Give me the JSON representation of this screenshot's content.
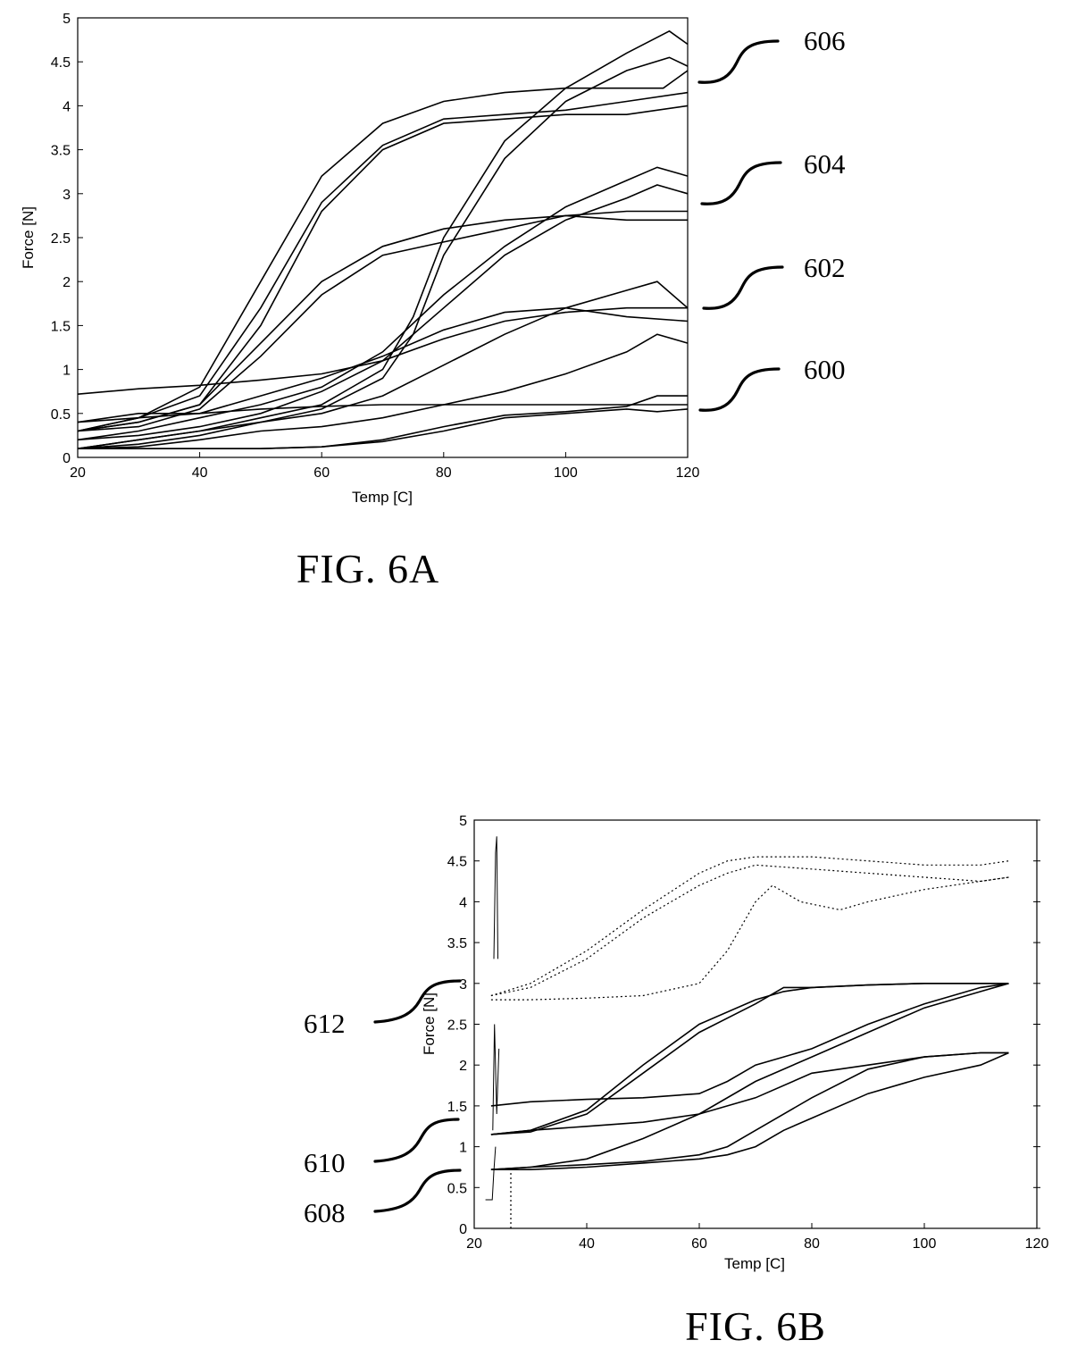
{
  "chart_data": [
    {
      "type": "line",
      "figure_label": "FIG. 6A",
      "xlabel": "Temp [C]",
      "ylabel": "Force [N]",
      "xlim": [
        20,
        120
      ],
      "ylim": [
        0,
        5
      ],
      "xticks": [
        20,
        40,
        60,
        80,
        100,
        120
      ],
      "yticks": [
        0,
        0.5,
        1,
        1.5,
        2,
        2.5,
        3,
        3.5,
        4,
        4.5,
        5
      ],
      "grid": false,
      "reference_labels": [
        {
          "text": "606",
          "y": 4.3
        },
        {
          "text": "604",
          "y": 2.9
        },
        {
          "text": "602",
          "y": 1.7
        },
        {
          "text": "600",
          "y": 0.55
        }
      ],
      "series": [
        {
          "group": "606",
          "x": [
            20,
            30,
            40,
            50,
            60,
            70,
            80,
            90,
            100,
            110,
            116,
            118,
            120
          ],
          "y": [
            0.4,
            0.45,
            0.8,
            2.0,
            3.2,
            3.8,
            4.05,
            4.15,
            4.2,
            4.2,
            4.2,
            4.3,
            4.4
          ]
        },
        {
          "group": "606",
          "x": [
            20,
            30,
            40,
            50,
            60,
            70,
            80,
            90,
            100,
            110,
            120
          ],
          "y": [
            0.3,
            0.45,
            0.7,
            1.7,
            2.9,
            3.55,
            3.85,
            3.9,
            3.95,
            4.05,
            4.15
          ]
        },
        {
          "group": "606",
          "x": [
            20,
            30,
            40,
            50,
            60,
            70,
            80,
            90,
            100,
            110,
            120
          ],
          "y": [
            0.3,
            0.4,
            0.6,
            1.5,
            2.8,
            3.5,
            3.8,
            3.85,
            3.9,
            3.9,
            4.0
          ]
        },
        {
          "group": "606",
          "x": [
            20,
            30,
            40,
            50,
            60,
            70,
            75,
            80,
            90,
            100,
            110,
            117,
            120
          ],
          "y": [
            0.1,
            0.2,
            0.3,
            0.45,
            0.6,
            1.0,
            1.6,
            2.5,
            3.6,
            4.2,
            4.6,
            4.85,
            4.7
          ]
        },
        {
          "group": "606",
          "x": [
            20,
            30,
            40,
            50,
            60,
            70,
            75,
            80,
            90,
            100,
            110,
            117,
            120
          ],
          "y": [
            0.1,
            0.15,
            0.25,
            0.4,
            0.55,
            0.9,
            1.4,
            2.3,
            3.4,
            4.05,
            4.4,
            4.55,
            4.45
          ]
        },
        {
          "group": "604",
          "x": [
            20,
            30,
            40,
            50,
            60,
            70,
            80,
            90,
            100,
            110,
            120
          ],
          "y": [
            0.3,
            0.4,
            0.6,
            1.3,
            2.0,
            2.4,
            2.6,
            2.7,
            2.75,
            2.8,
            2.8
          ]
        },
        {
          "group": "604",
          "x": [
            20,
            30,
            40,
            50,
            60,
            70,
            80,
            90,
            100,
            110,
            120
          ],
          "y": [
            0.3,
            0.35,
            0.55,
            1.15,
            1.85,
            2.3,
            2.45,
            2.6,
            2.75,
            2.7,
            2.7
          ]
        },
        {
          "group": "604",
          "x": [
            20,
            30,
            40,
            50,
            60,
            70,
            80,
            90,
            100,
            110,
            115,
            120
          ],
          "y": [
            0.2,
            0.3,
            0.45,
            0.6,
            0.8,
            1.2,
            1.85,
            2.4,
            2.85,
            3.15,
            3.3,
            3.2
          ]
        },
        {
          "group": "604",
          "x": [
            20,
            30,
            40,
            50,
            60,
            70,
            80,
            90,
            100,
            110,
            115,
            120
          ],
          "y": [
            0.2,
            0.25,
            0.35,
            0.5,
            0.75,
            1.1,
            1.7,
            2.3,
            2.7,
            2.95,
            3.1,
            3.0
          ]
        },
        {
          "group": "602",
          "x": [
            20,
            30,
            40,
            50,
            60,
            70,
            80,
            90,
            100,
            110,
            120
          ],
          "y": [
            0.72,
            0.78,
            0.82,
            0.88,
            0.95,
            1.1,
            1.35,
            1.55,
            1.65,
            1.7,
            1.7
          ]
        },
        {
          "group": "602",
          "x": [
            20,
            30,
            40,
            50,
            60,
            70,
            80,
            90,
            100,
            110,
            120
          ],
          "y": [
            0.3,
            0.45,
            0.5,
            0.7,
            0.9,
            1.15,
            1.45,
            1.65,
            1.7,
            1.6,
            1.55
          ]
        },
        {
          "group": "602",
          "x": [
            20,
            30,
            40,
            50,
            60,
            70,
            80,
            90,
            100,
            110,
            115,
            120
          ],
          "y": [
            0.1,
            0.2,
            0.3,
            0.4,
            0.5,
            0.7,
            1.05,
            1.4,
            1.7,
            1.9,
            2.0,
            1.7
          ]
        },
        {
          "group": "602",
          "x": [
            20,
            30,
            40,
            50,
            60,
            70,
            80,
            90,
            100,
            110,
            115,
            120
          ],
          "y": [
            0.1,
            0.12,
            0.2,
            0.3,
            0.35,
            0.45,
            0.6,
            0.75,
            0.95,
            1.2,
            1.4,
            1.3
          ]
        },
        {
          "group": "600",
          "x": [
            20,
            30,
            40,
            50,
            60,
            70,
            80,
            90,
            100,
            110,
            120
          ],
          "y": [
            0.4,
            0.5,
            0.5,
            0.55,
            0.58,
            0.6,
            0.6,
            0.6,
            0.6,
            0.6,
            0.6
          ]
        },
        {
          "group": "600",
          "x": [
            20,
            30,
            40,
            50,
            60,
            70,
            80,
            90,
            100,
            110,
            115,
            120
          ],
          "y": [
            0.1,
            0.1,
            0.1,
            0.1,
            0.12,
            0.2,
            0.35,
            0.48,
            0.52,
            0.58,
            0.7,
            0.7
          ]
        },
        {
          "group": "600",
          "x": [
            20,
            30,
            40,
            50,
            60,
            70,
            80,
            90,
            100,
            110,
            115,
            120
          ],
          "y": [
            0.1,
            0.1,
            0.1,
            0.1,
            0.12,
            0.18,
            0.3,
            0.45,
            0.5,
            0.55,
            0.52,
            0.55
          ]
        }
      ]
    },
    {
      "type": "line",
      "figure_label": "FIG. 6B",
      "xlabel": "Temp [C]",
      "ylabel": "Force [N]",
      "xlim": [
        20,
        120
      ],
      "ylim": [
        0,
        5
      ],
      "xticks": [
        20,
        40,
        60,
        80,
        100,
        120
      ],
      "yticks": [
        0,
        0.5,
        1,
        1.5,
        2,
        2.5,
        3,
        3.5,
        4,
        4.5,
        5
      ],
      "grid": false,
      "reference_labels": [
        {
          "text": "612",
          "y": 2.9
        },
        {
          "text": "610",
          "y": 1.35
        },
        {
          "text": "608",
          "y": 0.72
        }
      ],
      "series": [
        {
          "group": "612",
          "style": "dotted",
          "x": [
            23,
            30,
            40,
            50,
            60,
            65,
            70,
            80,
            90,
            100,
            110,
            115
          ],
          "y": [
            2.85,
            3.0,
            3.4,
            3.9,
            4.35,
            4.5,
            4.55,
            4.55,
            4.5,
            4.45,
            4.45,
            4.5
          ]
        },
        {
          "group": "612",
          "style": "dotted",
          "x": [
            23,
            30,
            40,
            50,
            60,
            65,
            70,
            80,
            90,
            100,
            110,
            115
          ],
          "y": [
            2.85,
            2.95,
            3.3,
            3.8,
            4.2,
            4.35,
            4.45,
            4.4,
            4.35,
            4.3,
            4.25,
            4.3
          ]
        },
        {
          "group": "612",
          "style": "dotted",
          "x": [
            23,
            30,
            40,
            50,
            60,
            65,
            70,
            73,
            78,
            85,
            90,
            100,
            110,
            115
          ],
          "y": [
            2.8,
            2.8,
            2.82,
            2.85,
            3.0,
            3.4,
            4.0,
            4.2,
            4.0,
            3.9,
            4.0,
            4.15,
            4.25,
            4.3
          ]
        },
        {
          "group": "612",
          "style": "thin",
          "x": [
            23.5,
            23.8,
            24.0,
            24.2
          ],
          "y": [
            3.3,
            4.6,
            4.8,
            3.3
          ]
        },
        {
          "group": "610",
          "style": "solid",
          "x": [
            23,
            30,
            40,
            50,
            60,
            70,
            75,
            80,
            90,
            100,
            110,
            115
          ],
          "y": [
            1.15,
            1.18,
            1.4,
            1.9,
            2.4,
            2.75,
            2.95,
            2.95,
            2.98,
            3.0,
            3.0,
            3.0
          ]
        },
        {
          "group": "610",
          "style": "solid",
          "x": [
            23,
            30,
            40,
            50,
            60,
            70,
            75,
            80,
            90,
            100,
            110,
            115
          ],
          "y": [
            1.15,
            1.2,
            1.45,
            2.0,
            2.5,
            2.8,
            2.9,
            2.95,
            2.98,
            3.0,
            3.0,
            3.0
          ]
        },
        {
          "group": "610",
          "style": "solid",
          "x": [
            23,
            30,
            40,
            50,
            60,
            70,
            80,
            90,
            100,
            110,
            115
          ],
          "y": [
            1.15,
            1.2,
            1.25,
            1.3,
            1.4,
            1.6,
            1.9,
            2.0,
            2.1,
            2.15,
            2.15
          ]
        },
        {
          "group": "610",
          "style": "solid",
          "x": [
            23,
            30,
            40,
            50,
            60,
            65,
            70,
            75,
            80,
            90,
            100,
            110,
            115
          ],
          "y": [
            1.5,
            1.55,
            1.58,
            1.6,
            1.65,
            1.8,
            2.0,
            2.1,
            2.2,
            2.5,
            2.75,
            2.95,
            3.0
          ]
        },
        {
          "group": "610",
          "style": "thin",
          "x": [
            23.3,
            23.6,
            24.0,
            24.4
          ],
          "y": [
            1.2,
            2.5,
            1.4,
            2.2
          ]
        },
        {
          "group": "608",
          "style": "solid",
          "x": [
            23,
            30,
            40,
            50,
            60,
            65,
            70,
            80,
            90,
            100,
            110,
            115
          ],
          "y": [
            0.72,
            0.75,
            0.78,
            0.82,
            0.9,
            1.0,
            1.2,
            1.6,
            1.95,
            2.1,
            2.15,
            2.15
          ]
        },
        {
          "group": "608",
          "style": "solid",
          "x": [
            23,
            30,
            40,
            50,
            60,
            70,
            80,
            90,
            100,
            110,
            115
          ],
          "y": [
            0.72,
            0.75,
            0.85,
            1.1,
            1.4,
            1.8,
            2.1,
            2.4,
            2.7,
            2.9,
            3.0
          ]
        },
        {
          "group": "608",
          "style": "solid",
          "x": [
            23,
            30,
            40,
            50,
            60,
            65,
            70,
            75,
            80,
            90,
            100,
            110,
            115
          ],
          "y": [
            0.72,
            0.72,
            0.75,
            0.8,
            0.85,
            0.9,
            1.0,
            1.2,
            1.35,
            1.65,
            1.85,
            2.0,
            2.15
          ]
        },
        {
          "group": "608",
          "style": "thin",
          "x": [
            22,
            23.2,
            23.5,
            23.8
          ],
          "y": [
            0.35,
            0.35,
            0.7,
            1.0
          ]
        },
        {
          "group": "608",
          "style": "dotted",
          "x": [
            26.5,
            26.5
          ],
          "y": [
            0,
            0.75
          ]
        }
      ]
    }
  ]
}
